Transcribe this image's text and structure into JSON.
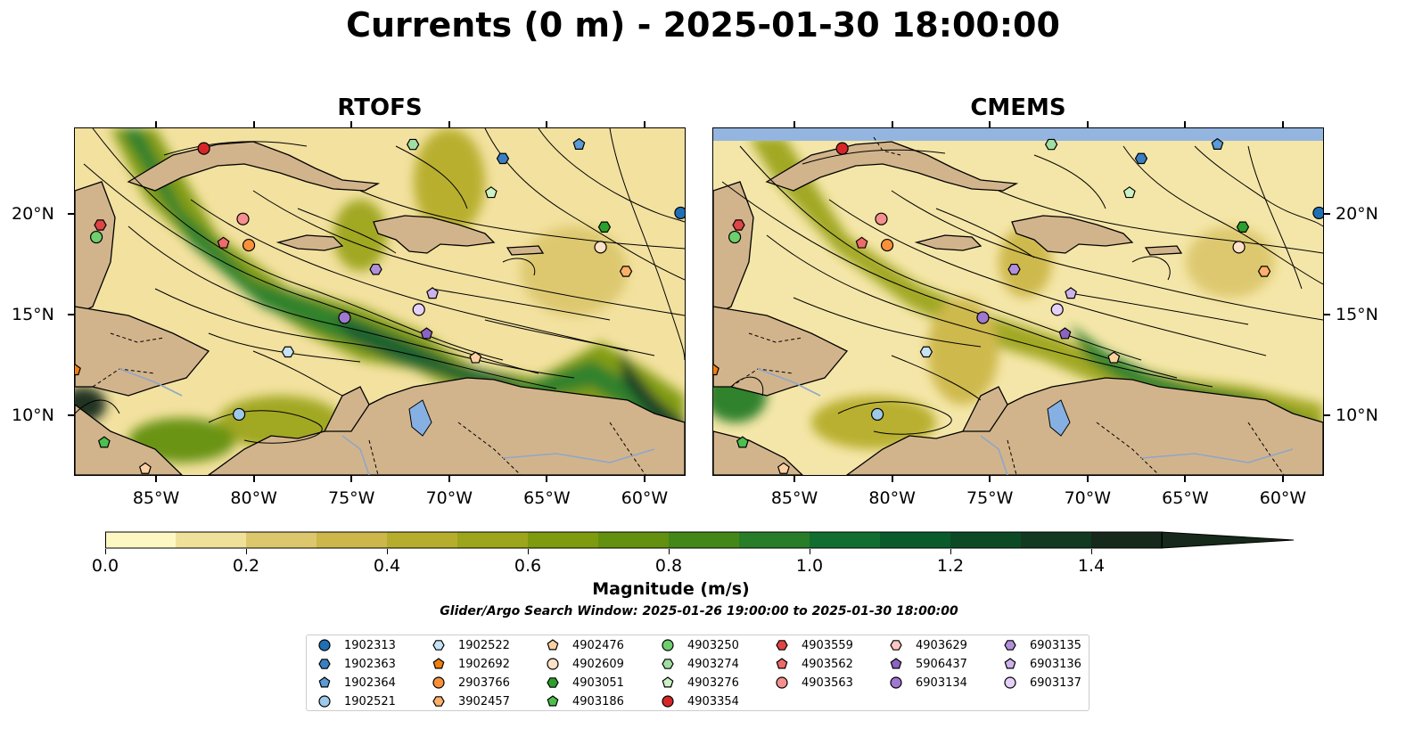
{
  "title": "Currents (0 m) - 2025-01-30 18:00:00",
  "panels": [
    {
      "title": "RTOFS",
      "has_mask": false
    },
    {
      "title": "CMEMS",
      "has_mask": true
    }
  ],
  "axes": {
    "lon_range": [
      -89.2,
      -57.9
    ],
    "lat_range": [
      7.0,
      24.3
    ],
    "lon_ticks": [
      "85°W",
      "80°W",
      "75°W",
      "70°W",
      "65°W",
      "60°W"
    ],
    "lon_values": [
      -85,
      -80,
      -75,
      -70,
      -65,
      -60
    ],
    "lat_ticks": [
      "20°N",
      "15°N",
      "10°N"
    ],
    "lat_values": [
      20,
      15,
      10
    ]
  },
  "colorbar": {
    "label": "Magnitude (m/s)",
    "ticks": [
      "0.0",
      "0.2",
      "0.4",
      "0.6",
      "0.8",
      "1.0",
      "1.2",
      "1.4"
    ],
    "tick_values": [
      0.0,
      0.2,
      0.4,
      0.6,
      0.8,
      1.0,
      1.2,
      1.4
    ],
    "range": [
      0.0,
      1.5
    ],
    "extend": "max",
    "colors": [
      "#fdf7c4",
      "#f0e19a",
      "#dcc76d",
      "#cdb74a",
      "#b6ad2c",
      "#9da51a",
      "#7e9a0e",
      "#63900f",
      "#448719",
      "#287d28",
      "#116e31",
      "#0a5b2c",
      "#0c4a26",
      "#113a20",
      "#16291a"
    ]
  },
  "search_window": "Glider/Argo Search Window: 2025-01-26 19:00:00 to 2025-01-30 18:00:00",
  "legend": {
    "columns": [
      [
        {
          "id": "1902313",
          "marker": "circle",
          "color": "#1f6fb4"
        },
        {
          "id": "1902363",
          "marker": "hexagon",
          "color": "#3a7fc1"
        },
        {
          "id": "1902364",
          "marker": "pentagon",
          "color": "#5a9bd8"
        },
        {
          "id": "1902521",
          "marker": "circle",
          "color": "#9ecae9"
        }
      ],
      [
        {
          "id": "1902522",
          "marker": "hexagon",
          "color": "#c6e3f5"
        },
        {
          "id": "1902692",
          "marker": "pentagon",
          "color": "#f07f0e"
        },
        {
          "id": "2903766",
          "marker": "circle",
          "color": "#f8913a"
        },
        {
          "id": "3902457",
          "marker": "hexagon",
          "color": "#fdb068"
        }
      ],
      [
        {
          "id": "4902476",
          "marker": "pentagon",
          "color": "#fdd0a2"
        },
        {
          "id": "4902609",
          "marker": "circle",
          "color": "#fde2c8"
        },
        {
          "id": "4903051",
          "marker": "hexagon",
          "color": "#2ca02c"
        },
        {
          "id": "4903186",
          "marker": "pentagon",
          "color": "#4cbf4c"
        }
      ],
      [
        {
          "id": "4903250",
          "marker": "circle",
          "color": "#6dcf6d"
        },
        {
          "id": "4903274",
          "marker": "hexagon",
          "color": "#a1dea1"
        },
        {
          "id": "4903276",
          "marker": "pentagon",
          "color": "#caf2c4"
        },
        {
          "id": "4903354",
          "marker": "circle",
          "color": "#d62728"
        }
      ],
      [
        {
          "id": "4903559",
          "marker": "hexagon",
          "color": "#e04444"
        },
        {
          "id": "4903562",
          "marker": "pentagon",
          "color": "#ee6b6b"
        },
        {
          "id": "4903563",
          "marker": "circle",
          "color": "#f4908f"
        }
      ],
      [
        {
          "id": "4903629",
          "marker": "hexagon",
          "color": "#fcc7c2"
        },
        {
          "id": "5906437",
          "marker": "pentagon",
          "color": "#8b63c0"
        },
        {
          "id": "6903134",
          "marker": "circle",
          "color": "#9f78cf"
        }
      ],
      [
        {
          "id": "6903135",
          "marker": "hexagon",
          "color": "#b28fda"
        },
        {
          "id": "6903136",
          "marker": "pentagon",
          "color": "#cdb2ec"
        },
        {
          "id": "6903137",
          "marker": "circle",
          "color": "#e4d0f8"
        }
      ]
    ]
  },
  "floats": [
    {
      "id": "4903354",
      "lon": -82.6,
      "lat": 23.3
    },
    {
      "id": "4903274",
      "lon": -71.9,
      "lat": 23.5
    },
    {
      "id": "1902364",
      "lon": -63.4,
      "lat": 23.5
    },
    {
      "id": "1902363",
      "lon": -67.3,
      "lat": 22.8
    },
    {
      "id": "4903276",
      "lon": -67.9,
      "lat": 21.1
    },
    {
      "id": "1902313",
      "lon": -58.2,
      "lat": 20.1
    },
    {
      "id": "4903563",
      "lon": -80.6,
      "lat": 19.8
    },
    {
      "id": "4903051",
      "lon": -62.1,
      "lat": 19.4
    },
    {
      "id": "4903559",
      "lon": -87.9,
      "lat": 19.5
    },
    {
      "id": "4903250",
      "lon": -88.1,
      "lat": 18.9
    },
    {
      "id": "4903562",
      "lon": -81.6,
      "lat": 18.6
    },
    {
      "id": "2903766",
      "lon": -80.3,
      "lat": 18.5
    },
    {
      "id": "4902609",
      "lon": -62.3,
      "lat": 18.4
    },
    {
      "id": "3902457",
      "lon": -61.0,
      "lat": 17.2
    },
    {
      "id": "6903135",
      "lon": -73.8,
      "lat": 17.3
    },
    {
      "id": "6903136",
      "lon": -70.9,
      "lat": 16.1
    },
    {
      "id": "6903137",
      "lon": -71.6,
      "lat": 15.3
    },
    {
      "id": "6903134",
      "lon": -75.4,
      "lat": 14.9
    },
    {
      "id": "5906437",
      "lon": -71.2,
      "lat": 14.1
    },
    {
      "id": "1902522",
      "lon": -78.3,
      "lat": 13.2
    },
    {
      "id": "4902476",
      "lon": -68.7,
      "lat": 12.9
    },
    {
      "id": "1902692",
      "lon": -89.2,
      "lat": 12.3
    },
    {
      "id": "1902521",
      "lon": -80.8,
      "lat": 10.1
    },
    {
      "id": "4903186",
      "lon": -87.7,
      "lat": 8.7
    },
    {
      "id": "4902476b",
      "lon": -85.6,
      "lat": 7.4
    }
  ]
}
